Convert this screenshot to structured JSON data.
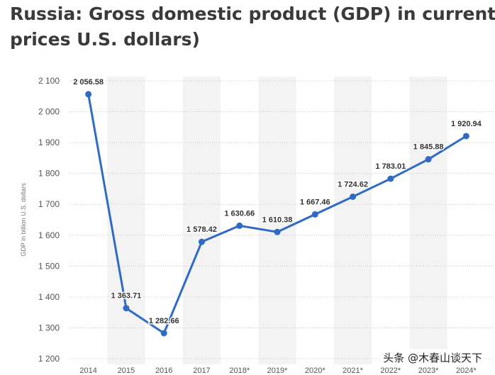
{
  "title": "Russia: Gross domestic product (GDP) in current prices U.S. dollars)",
  "watermark": "头条 @木春山谈天下",
  "colors": {
    "line": "#2f6ac4",
    "band": "#f3f3f3",
    "grid": "#c8c8c8"
  },
  "chart_data": {
    "type": "line",
    "title": "Russia: Gross domestic product (GDP) in current prices U.S. dollars)",
    "xlabel": "",
    "ylabel": "GDP in billion U.S. dollars",
    "ylim": [
      1200,
      2100
    ],
    "yticks": [
      1200,
      1300,
      1400,
      1500,
      1600,
      1700,
      1800,
      1900,
      2000,
      2100
    ],
    "ytick_labels": [
      "1 200",
      "1 300",
      "1 400",
      "1 500",
      "1 600",
      "1 700",
      "1 800",
      "1 900",
      "2 000",
      "2 100"
    ],
    "categories": [
      "2014",
      "2015",
      "2016",
      "2017",
      "2018*",
      "2019*",
      "2020*",
      "2021*",
      "2022*",
      "2023*",
      "2024*"
    ],
    "series": [
      {
        "values": [
          2056.58,
          1363.71,
          1282.66,
          1578.42,
          1630.66,
          1610.38,
          1667.46,
          1724.62,
          1783.01,
          1845.88,
          1920.94
        ],
        "labels": [
          "2 056.58",
          "1 363.71",
          "1 282.66",
          "1 578.42",
          "1 630.66",
          "1 610.38",
          "1 667.46",
          "1 724.62",
          "1 783.01",
          "1 845.88",
          "1 920.94"
        ]
      }
    ],
    "grid": true,
    "grid_style": "dotted-horizontal",
    "alternating_column_bands": true
  }
}
